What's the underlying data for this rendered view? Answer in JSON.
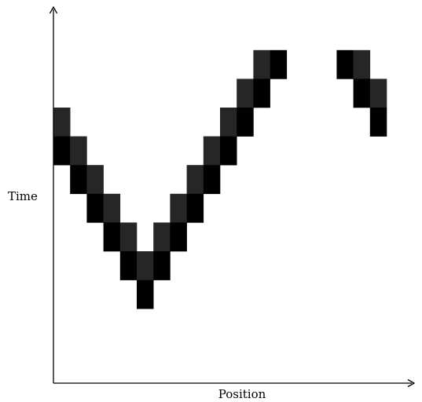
{
  "axes": {
    "x_label": "Position",
    "y_label": "Time"
  },
  "colors": {
    "axis": "#000000",
    "cell_dark": "#000000",
    "cell_gray": "#262626",
    "background": "#ffffff"
  },
  "cells": [
    {
      "col": 0,
      "row": 0,
      "tone": "gray"
    },
    {
      "col": 0,
      "row": 1,
      "tone": "dark"
    },
    {
      "col": 1,
      "row": 1,
      "tone": "gray"
    },
    {
      "col": 1,
      "row": 2,
      "tone": "dark"
    },
    {
      "col": 2,
      "row": 2,
      "tone": "gray"
    },
    {
      "col": 2,
      "row": 3,
      "tone": "dark"
    },
    {
      "col": 3,
      "row": 3,
      "tone": "gray"
    },
    {
      "col": 3,
      "row": 4,
      "tone": "dark"
    },
    {
      "col": 4,
      "row": 4,
      "tone": "gray"
    },
    {
      "col": 4,
      "row": 5,
      "tone": "dark"
    },
    {
      "col": 5,
      "row": 5,
      "tone": "gray"
    },
    {
      "col": 5,
      "row": 6,
      "tone": "dark"
    },
    {
      "col": 6,
      "row": 4,
      "tone": "gray"
    },
    {
      "col": 6,
      "row": 5,
      "tone": "dark"
    },
    {
      "col": 7,
      "row": 3,
      "tone": "gray"
    },
    {
      "col": 7,
      "row": 4,
      "tone": "dark"
    },
    {
      "col": 8,
      "row": 2,
      "tone": "gray"
    },
    {
      "col": 8,
      "row": 3,
      "tone": "dark"
    },
    {
      "col": 9,
      "row": 1,
      "tone": "gray"
    },
    {
      "col": 9,
      "row": 2,
      "tone": "dark"
    },
    {
      "col": 10,
      "row": 0,
      "tone": "gray"
    },
    {
      "col": 10,
      "row": 1,
      "tone": "dark"
    },
    {
      "col": 11,
      "row": -1,
      "tone": "gray"
    },
    {
      "col": 11,
      "row": 0,
      "tone": "dark"
    },
    {
      "col": 12,
      "row": -2,
      "tone": "gray"
    },
    {
      "col": 12,
      "row": -1,
      "tone": "dark"
    },
    {
      "col": 13,
      "row": -2,
      "tone": "dark"
    },
    {
      "col": 17,
      "row": -2,
      "tone": "dark"
    },
    {
      "col": 18,
      "row": -2,
      "tone": "gray"
    },
    {
      "col": 18,
      "row": -1,
      "tone": "dark"
    },
    {
      "col": 19,
      "row": -1,
      "tone": "gray"
    },
    {
      "col": 19,
      "row": 0,
      "tone": "dark"
    }
  ]
}
